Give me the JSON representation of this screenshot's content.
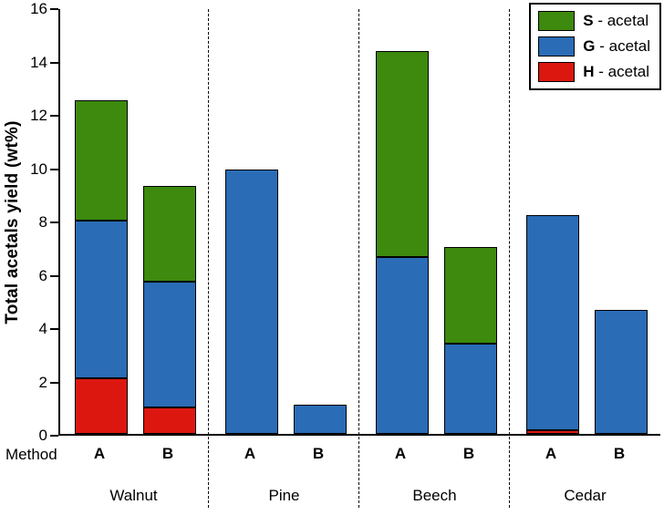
{
  "chart_data": {
    "type": "bar",
    "stacked": true,
    "title": "",
    "ylabel": "Total acetals yield (wt%)",
    "method_row_label": "Method",
    "ylim": [
      0,
      16
    ],
    "ytick_step": 2,
    "grid": false,
    "legend_position": "top-right",
    "stack_order_bottom_to_top": [
      "H",
      "G",
      "S"
    ],
    "colors": {
      "H": "#dc1710",
      "G": "#2a6cb5",
      "S": "#3d8a0e"
    },
    "legend": [
      {
        "bold": "S",
        "rest": " - acetal",
        "color": "#3d8a0e"
      },
      {
        "bold": "G",
        "rest": " - acetal",
        "color": "#2a6cb5"
      },
      {
        "bold": "H",
        "rest": " - acetal",
        "color": "#dc1710"
      }
    ],
    "groups": [
      {
        "label": "Walnut",
        "bars": [
          {
            "method": "A",
            "values": {
              "H": 2.1,
              "G": 5.9,
              "S": 4.5
            },
            "total": 12.5
          },
          {
            "method": "B",
            "values": {
              "H": 1.0,
              "G": 4.7,
              "S": 3.6
            },
            "total": 9.3
          }
        ]
      },
      {
        "label": "Pine",
        "bars": [
          {
            "method": "A",
            "values": {
              "H": 0,
              "G": 9.9,
              "S": 0
            },
            "total": 9.9
          },
          {
            "method": "B",
            "values": {
              "H": 0,
              "G": 1.1,
              "S": 0
            },
            "total": 1.1
          }
        ]
      },
      {
        "label": "Beech",
        "bars": [
          {
            "method": "A",
            "values": {
              "H": 0,
              "G": 6.65,
              "S": 7.7
            },
            "total": 14.35
          },
          {
            "method": "B",
            "values": {
              "H": 0,
              "G": 3.4,
              "S": 3.6
            },
            "total": 7.0
          }
        ]
      },
      {
        "label": "Cedar",
        "bars": [
          {
            "method": "A",
            "values": {
              "H": 0.15,
              "G": 8.05,
              "S": 0
            },
            "total": 8.2
          },
          {
            "method": "B",
            "values": {
              "H": 0,
              "G": 4.65,
              "S": 0
            },
            "total": 4.65
          }
        ]
      }
    ]
  }
}
